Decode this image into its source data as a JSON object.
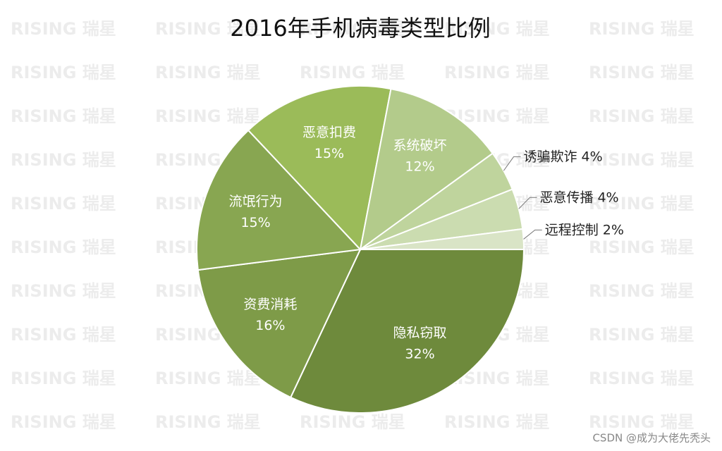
{
  "chart_data": {
    "type": "pie",
    "title": "2016年手机病毒类型比例",
    "categories": [
      "隐私窃取",
      "资费消耗",
      "流氓行为",
      "恶意扣费",
      "系统破坏",
      "诱骗欺诈",
      "恶意传播",
      "远程控制"
    ],
    "values": [
      32,
      16,
      15,
      15,
      12,
      4,
      4,
      2
    ],
    "value_labels": [
      "32%",
      "16%",
      "15%",
      "15%",
      "12%",
      "4%",
      "4%",
      "2%"
    ],
    "colors": [
      "#6e8a3c",
      "#7e9b48",
      "#88a651",
      "#9bbb59",
      "#b3cb8b",
      "#bfd49d",
      "#cbdcb0",
      "#d9e4c6"
    ]
  },
  "watermark": "RISING 瑞星",
  "credit": "CSDN @成为大佬先秃头"
}
